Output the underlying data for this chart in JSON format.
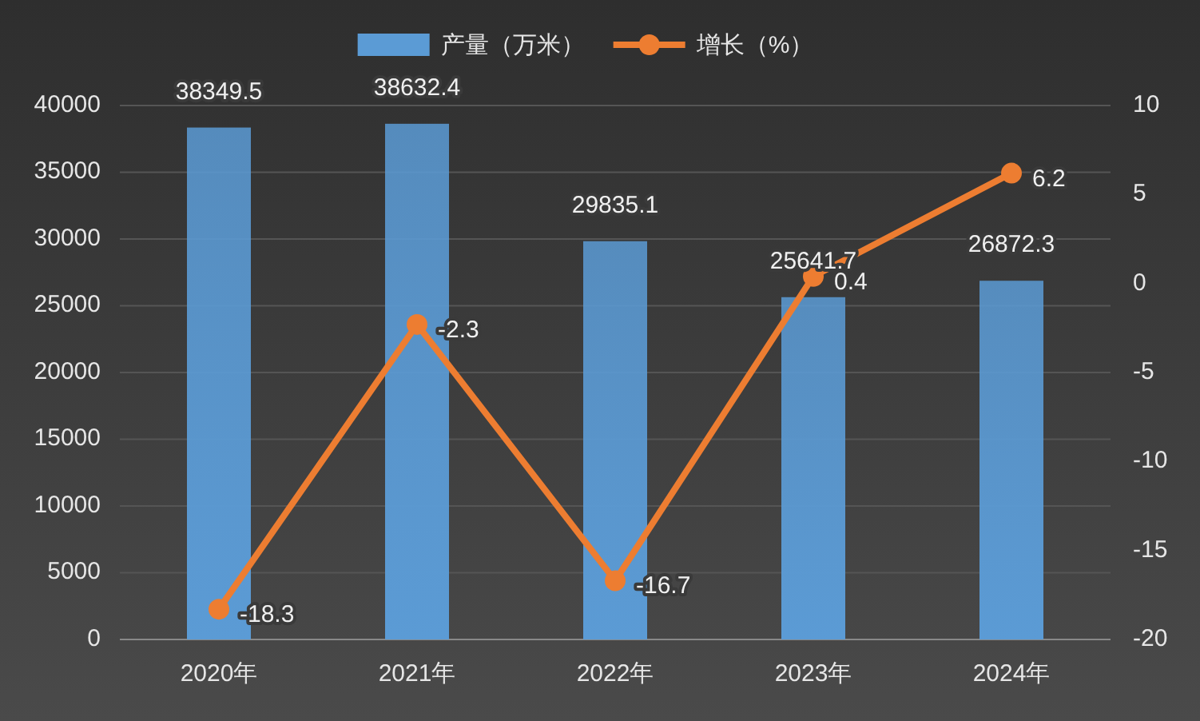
{
  "chart_data": {
    "type": "bar",
    "categories": [
      "2020年",
      "2021年",
      "2022年",
      "2023年",
      "2024年"
    ],
    "series": [
      {
        "name": "产量（万米）",
        "color": "#5b9bd5",
        "values": [
          38349.5,
          38632.4,
          29835.1,
          25641.7,
          26872.3
        ]
      },
      {
        "name": "增长（%）",
        "type": "line",
        "axis": "y2",
        "color": "#ed7d31",
        "values": [
          -18.3,
          -2.3,
          -16.7,
          0.4,
          6.2
        ]
      }
    ],
    "ylim": [
      0,
      40000
    ],
    "yticks": [
      0,
      5000,
      10000,
      15000,
      20000,
      25000,
      30000,
      35000,
      40000
    ],
    "y2lim": [
      -20,
      10
    ],
    "y2ticks": [
      -20,
      -15,
      -10,
      -5,
      0,
      5,
      10
    ],
    "grid": "y",
    "legend": "top",
    "marker": "circle",
    "data_labels": true
  }
}
